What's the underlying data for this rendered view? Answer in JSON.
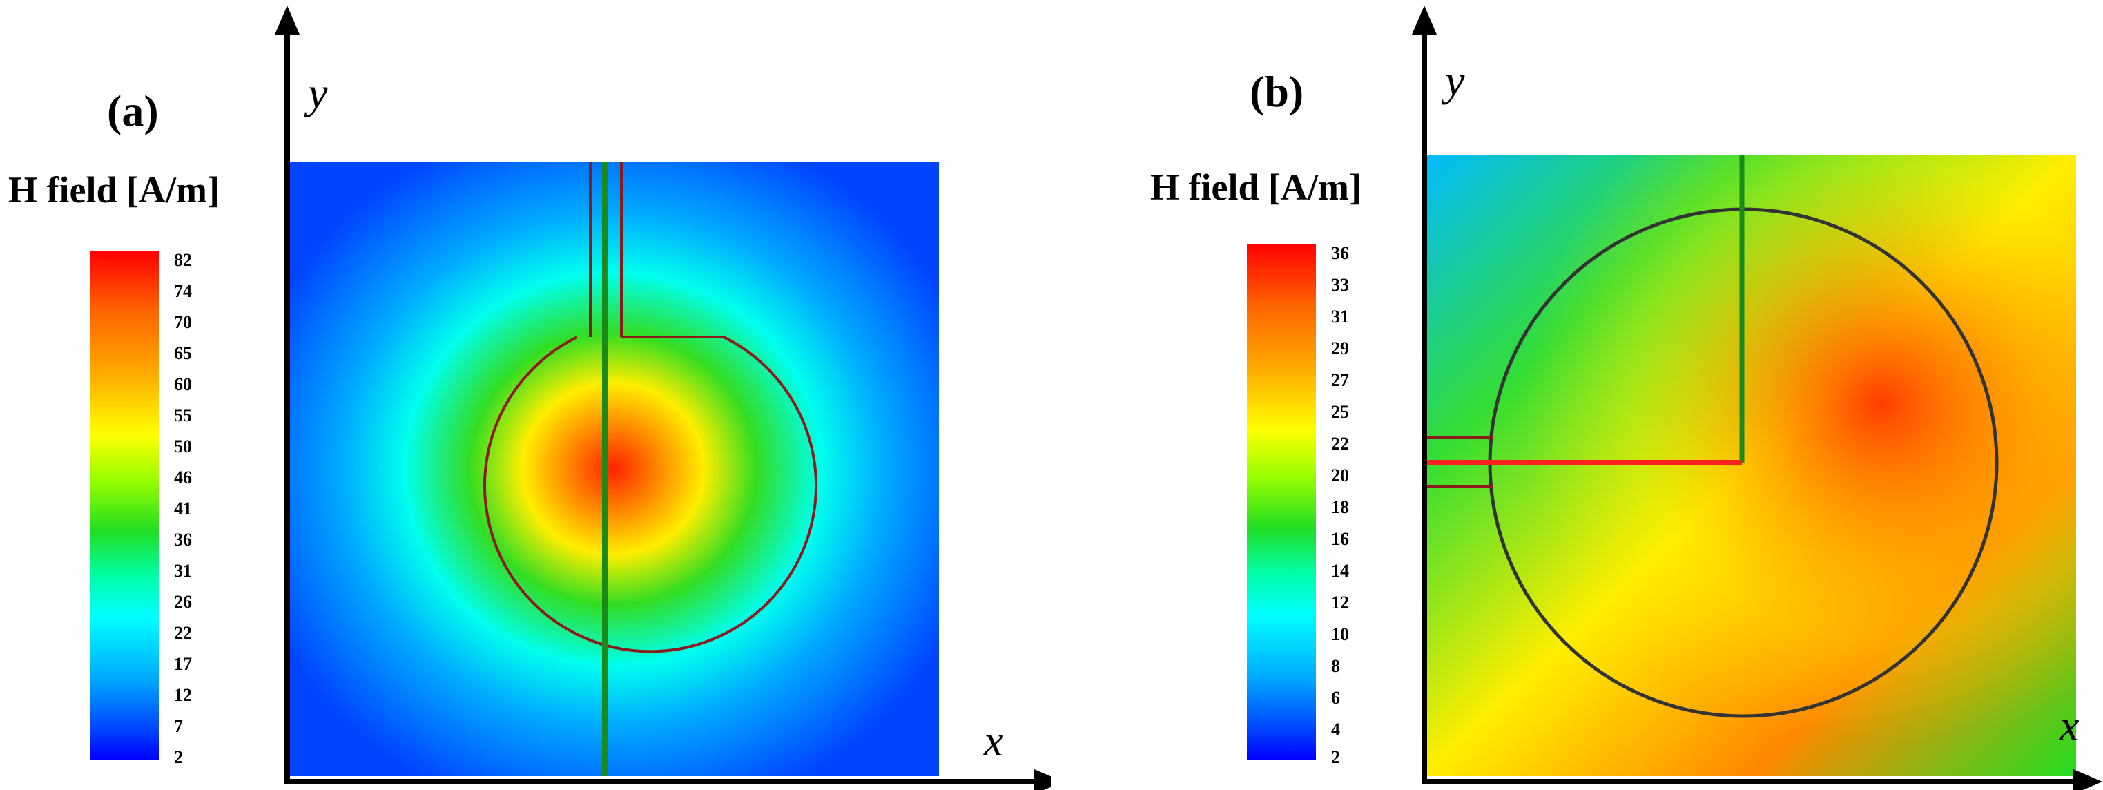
{
  "panels": [
    {
      "label": "(a)",
      "legend_title": "H field [A/m]",
      "legend_ticks": [
        "82",
        "74",
        "70",
        "65",
        "60",
        "55",
        "50",
        "46",
        "41",
        "36",
        "31",
        "26",
        "22",
        "17",
        "12",
        "7",
        "2"
      ],
      "x_axis": "x",
      "y_axis": "y"
    },
    {
      "label": "(b)",
      "legend_title": "H field [A/m]",
      "legend_ticks": [
        "36",
        "33",
        "31",
        "29",
        "27",
        "25",
        "22",
        "20",
        "18",
        "16",
        "14",
        "12",
        "10",
        "8",
        "6",
        "4",
        "2"
      ],
      "x_axis": "x",
      "y_axis": "y"
    }
  ],
  "colors": {
    "low": "#0000ff",
    "mid": "#00ff00",
    "high": "#ff0000",
    "antenna_trace": "#8b1a1a",
    "feed_line": "#1a8a1a",
    "feed_line_b": "#ff2020"
  }
}
